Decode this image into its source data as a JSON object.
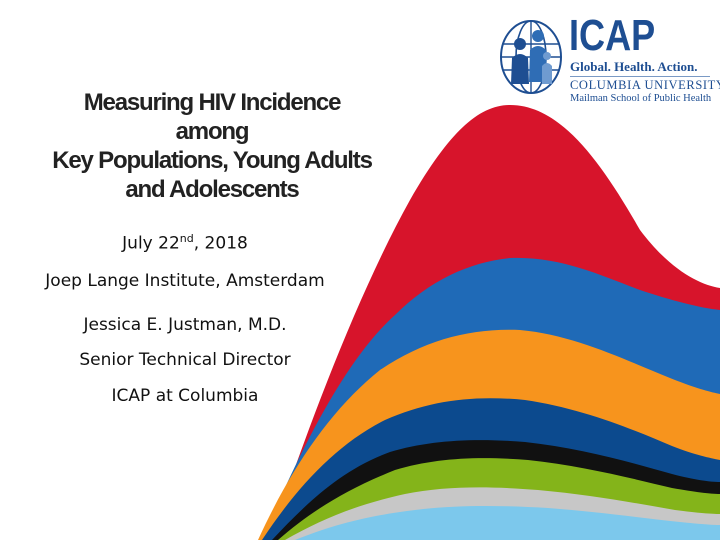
{
  "logo": {
    "name": "ICAP",
    "tagline": "Global. Health. Action.",
    "university": "COLUMBIA UNIVERSITY",
    "school": "Mailman School of Public Health"
  },
  "title": {
    "line1": "Measuring HIV Incidence",
    "line2": "among",
    "line3": "Key Populations, Young Adults",
    "line4": "and Adolescents"
  },
  "date": {
    "prefix": "July 22",
    "suffix": "nd",
    "rest": ", 2018"
  },
  "venue": "Joep Lange Institute, Amsterdam",
  "presenter": {
    "name": "Jessica E. Justman, M.D.",
    "role": "Senior Technical Director",
    "affiliation": "ICAP at Columbia"
  },
  "colors": {
    "red": "#d7142b",
    "blue": "#1f6ab7",
    "orange": "#f7941d",
    "navy": "#0c4a8e",
    "black": "#111111",
    "green": "#84b41a",
    "gray": "#c7c7c7",
    "lightblue": "#7cc8ec",
    "brand": "#1e4e92"
  }
}
